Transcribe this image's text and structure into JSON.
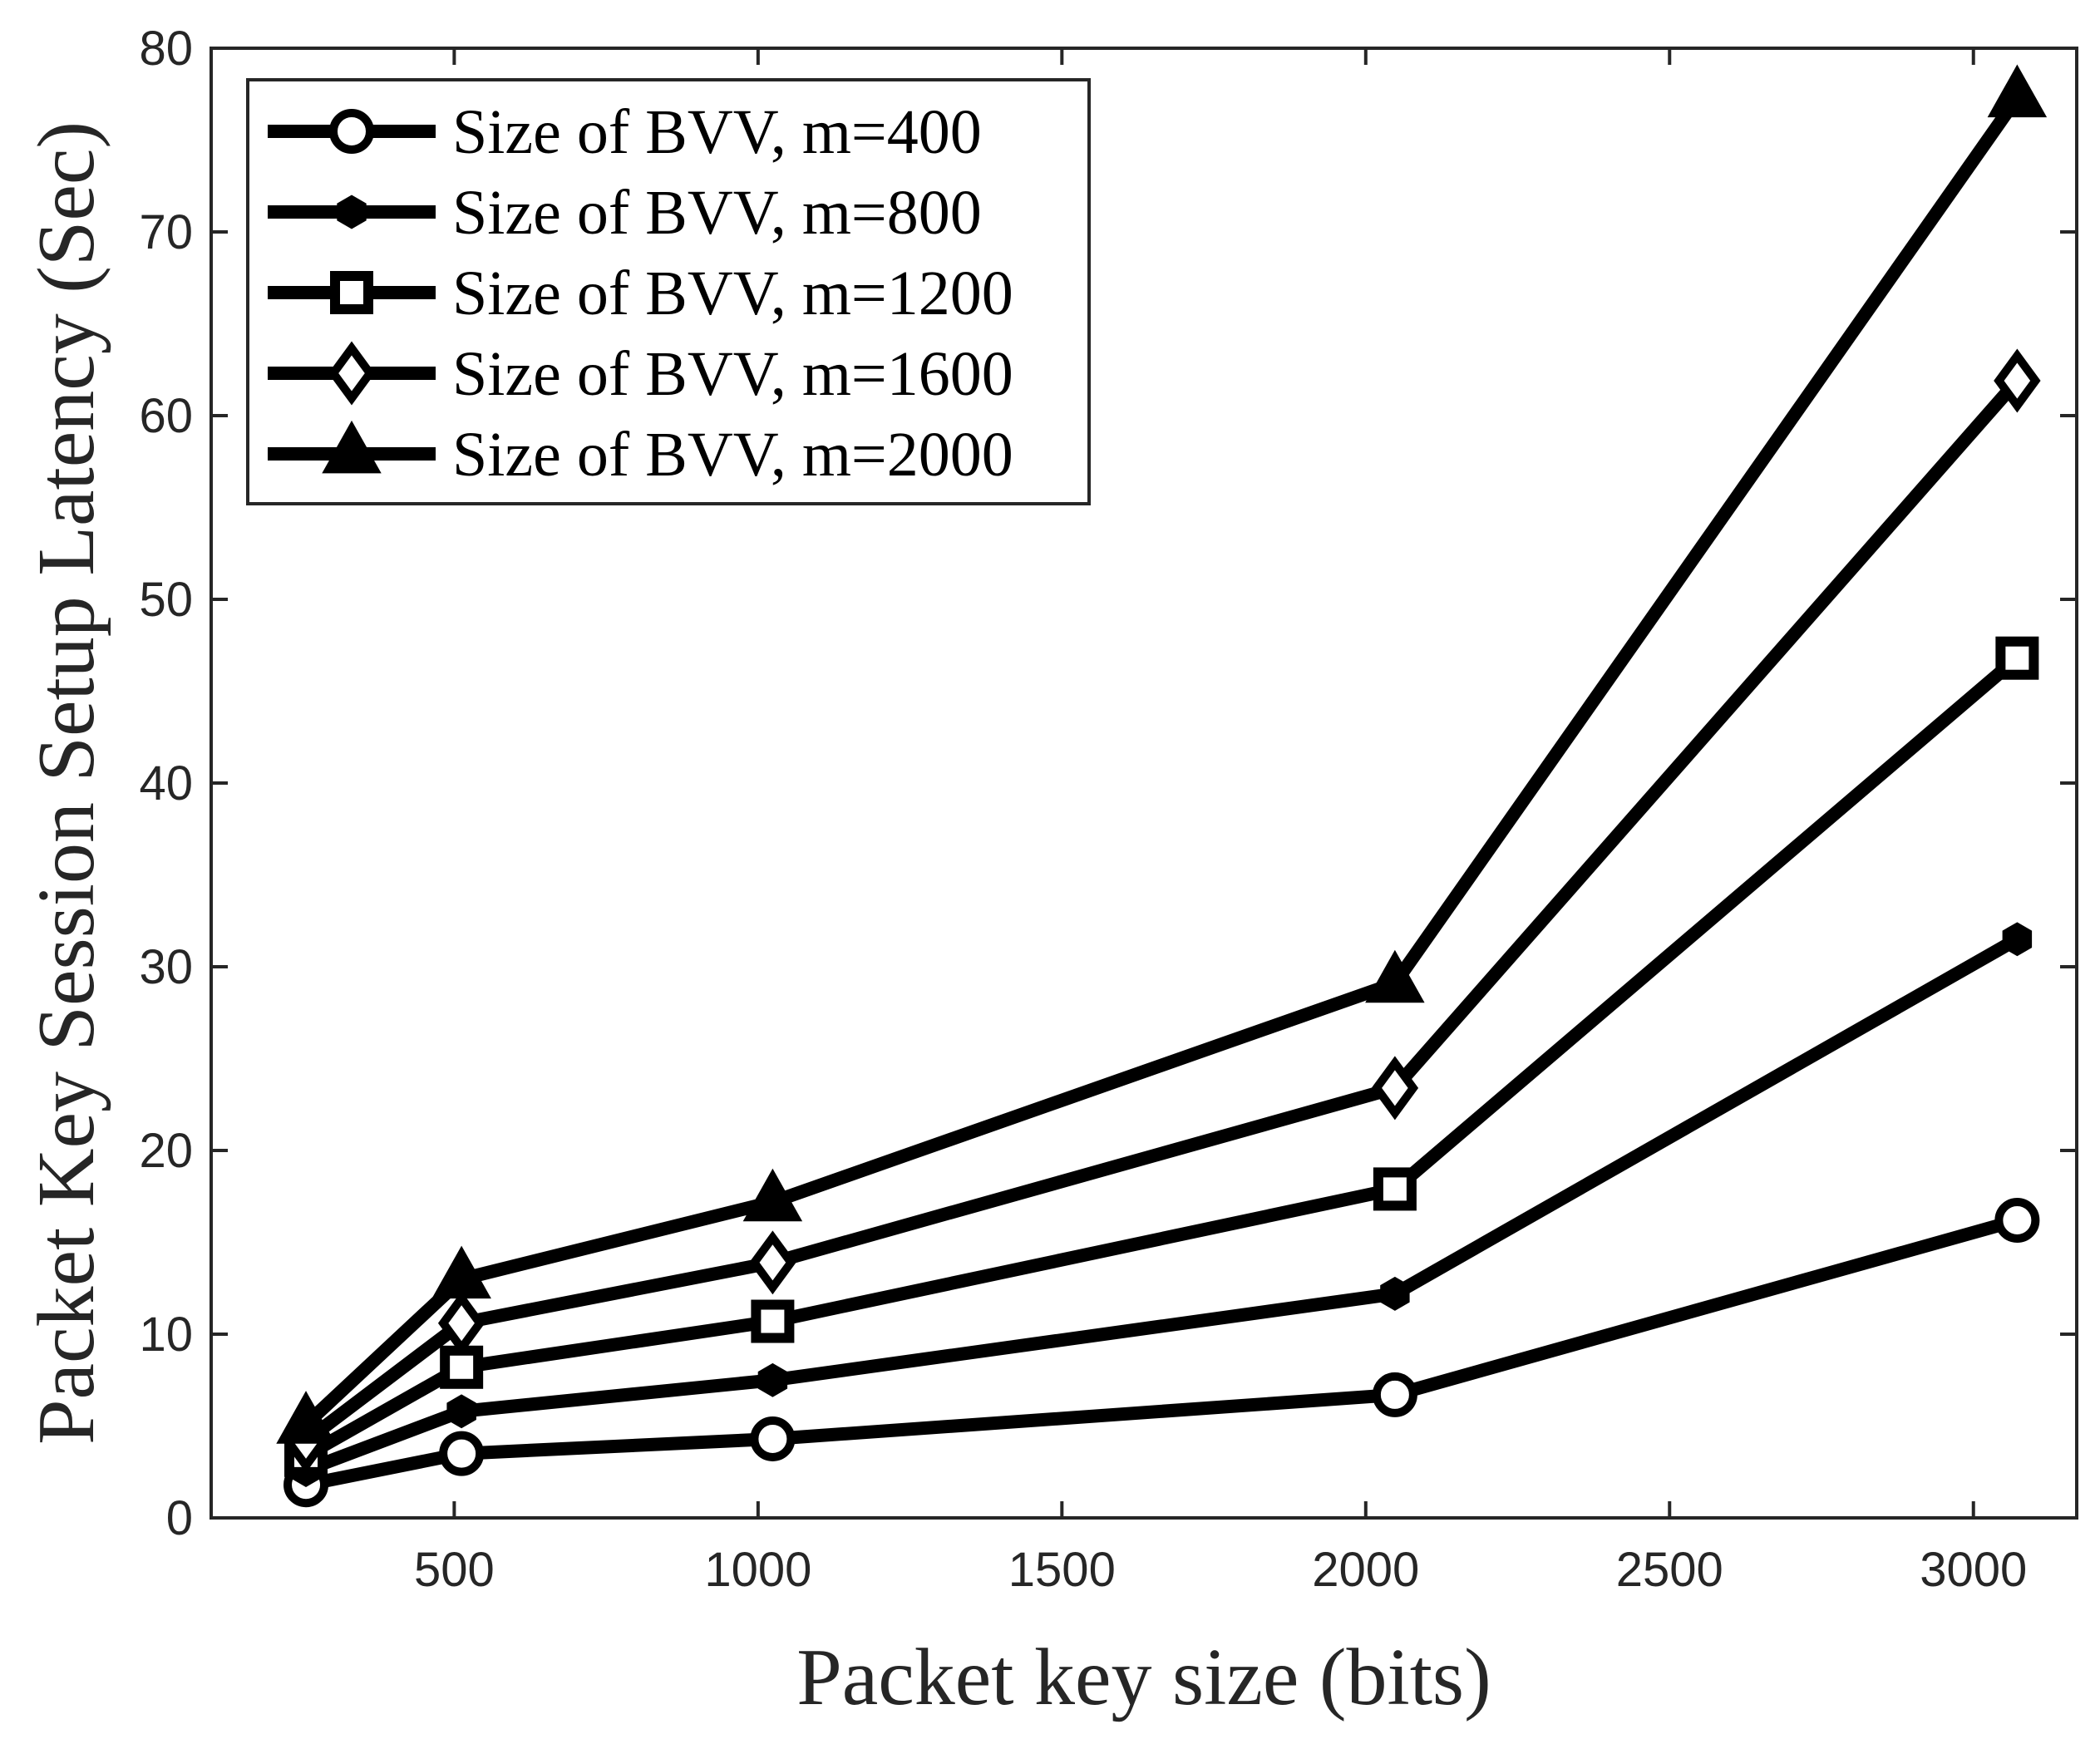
{
  "chart_data": {
    "type": "line",
    "title": "",
    "xlabel": "Packet key size (bits)",
    "ylabel": "Packet Key Session Setup Latency (Sec)",
    "xlim": [
      100,
      3170
    ],
    "ylim": [
      0,
      80
    ],
    "xticks": [
      500,
      1000,
      1500,
      2000,
      2500,
      3000
    ],
    "yticks": [
      0,
      10,
      20,
      30,
      40,
      50,
      60,
      70,
      80
    ],
    "x": [
      256,
      512,
      1024,
      2048,
      3072
    ],
    "series": [
      {
        "name": "Size of BVV, m=400",
        "marker": "circle",
        "values": [
          1.8,
          3.5,
          4.3,
          6.7,
          16.2
        ]
      },
      {
        "name": "Size of BVV, m=800",
        "marker": "hexagon",
        "values": [
          2.6,
          5.8,
          7.5,
          12.2,
          31.5
        ]
      },
      {
        "name": "Size of BVV, m=1200",
        "marker": "square",
        "values": [
          3.4,
          8.2,
          10.7,
          17.9,
          46.8
        ]
      },
      {
        "name": "Size of BVV, m=1600",
        "marker": "diamond",
        "values": [
          4.2,
          10.6,
          13.9,
          23.4,
          61.9
        ]
      },
      {
        "name": "Size of BVV, m=2000",
        "marker": "triangle",
        "values": [
          5.1,
          13.0,
          17.2,
          29.1,
          77.3
        ]
      }
    ],
    "legend_position": "top-left",
    "grid": false,
    "colors": {
      "line": "#000000",
      "axis": "#262626",
      "background": "#ffffff"
    }
  }
}
